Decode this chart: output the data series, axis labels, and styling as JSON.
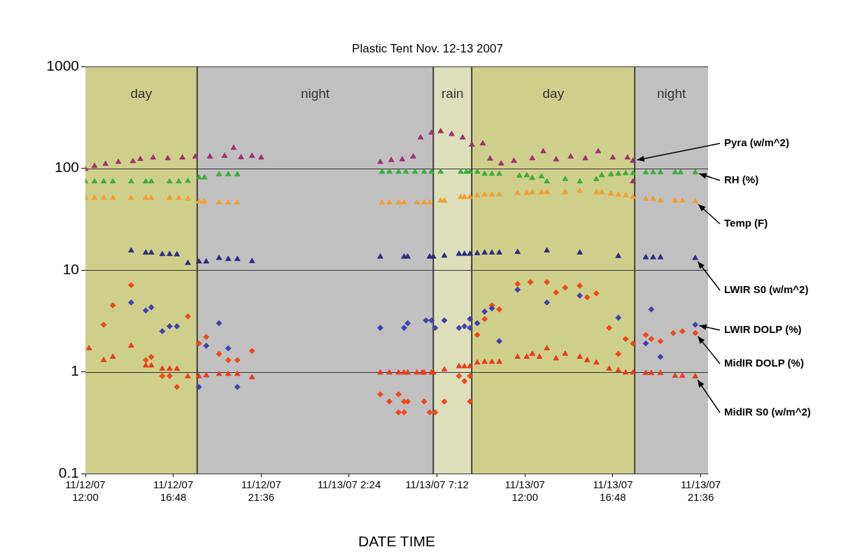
{
  "chart_data": {
    "type": "scatter",
    "title": "Plastic Tent Nov. 12-13 2007",
    "xlabel": "DATE TIME",
    "xlim": [
      "2007-11-12T12:00",
      "2007-11-13T22:00"
    ],
    "xticks": [
      {
        "value": "2007-11-12T12:00",
        "label": "11/12/07\n12:00"
      },
      {
        "value": "2007-11-12T16:48",
        "label": "11/12/07\n16:48"
      },
      {
        "value": "2007-11-12T21:36",
        "label": "11/12/07\n21:36"
      },
      {
        "value": "2007-11-13T02:24",
        "label": "11/13/07 2:24"
      },
      {
        "value": "2007-11-13T07:12",
        "label": "11/13/07 7:12"
      },
      {
        "value": "2007-11-13T12:00",
        "label": "11/13/07\n12:00"
      },
      {
        "value": "2007-11-13T16:48",
        "label": "11/13/07\n16:48"
      },
      {
        "value": "2007-11-13T21:36",
        "label": "11/13/07\n21:36"
      }
    ],
    "ylim": [
      0.1,
      1000
    ],
    "yticks": [
      0.1,
      1,
      10,
      100,
      1000
    ],
    "log": true,
    "grid": "y",
    "legend": false,
    "bands": [
      {
        "axis": "x",
        "from": "2007-11-12T12:00",
        "to": "2007-11-12T18:06",
        "label": "day",
        "color": "#cfcf8c"
      },
      {
        "axis": "x",
        "from": "2007-11-12T18:06",
        "to": "2007-11-13T07:00",
        "label": "night",
        "color": "#c0c0c0"
      },
      {
        "axis": "x",
        "from": "2007-11-13T07:00",
        "to": "2007-11-13T09:06",
        "label": "rain",
        "color": "#dcdfba"
      },
      {
        "axis": "x",
        "from": "2007-11-13T09:06",
        "to": "2007-11-13T18:00",
        "label": "day",
        "color": "#cfcf8c"
      },
      {
        "axis": "x",
        "from": "2007-11-13T18:00",
        "to": "2007-11-13T22:00",
        "label": "night",
        "color": "#c0c0c0"
      }
    ],
    "series": [
      {
        "name": "Pyra (w/m^2)",
        "color": "#a0306e",
        "marker": "triangle",
        "x": [
          "2007-11-12T12:00",
          "2007-11-12T12:30",
          "2007-11-12T13:06",
          "2007-11-12T13:48",
          "2007-11-12T14:36",
          "2007-11-12T15:00",
          "2007-11-12T15:42",
          "2007-11-12T16:30",
          "2007-11-12T17:18",
          "2007-11-12T18:00",
          "2007-11-12T18:48",
          "2007-11-12T19:36",
          "2007-11-12T20:06",
          "2007-11-12T20:30",
          "2007-11-12T21:06",
          "2007-11-12T21:36",
          "2007-11-13T04:06",
          "2007-11-13T04:42",
          "2007-11-13T05:18",
          "2007-11-13T05:54",
          "2007-11-13T06:18",
          "2007-11-13T06:54",
          "2007-11-13T07:24",
          "2007-11-13T08:00",
          "2007-11-13T08:36",
          "2007-11-13T09:06",
          "2007-11-13T09:42",
          "2007-11-13T10:06",
          "2007-11-13T10:42",
          "2007-11-13T11:24",
          "2007-11-13T12:24",
          "2007-11-13T13:00",
          "2007-11-13T13:42",
          "2007-11-13T14:30",
          "2007-11-13T15:18",
          "2007-11-13T16:00",
          "2007-11-13T16:48",
          "2007-11-13T17:36",
          "2007-11-13T17:54",
          "2007-11-13T17:54"
        ],
        "values": [
          98,
          105,
          110,
          115,
          117,
          123,
          127,
          125,
          127,
          130,
          130,
          132,
          158,
          128,
          132,
          127,
          115,
          120,
          122,
          130,
          200,
          223,
          230,
          216,
          200,
          170,
          175,
          124,
          111,
          118,
          125,
          146,
          122,
          130,
          125,
          146,
          127,
          127,
          74,
          118
        ]
      },
      {
        "name": "RH (%)",
        "color": "#3cac3c",
        "marker": "triangle",
        "x": [
          "2007-11-12T12:00",
          "2007-11-12T12:30",
          "2007-11-12T13:00",
          "2007-11-12T13:30",
          "2007-11-12T14:30",
          "2007-11-12T15:18",
          "2007-11-12T15:36",
          "2007-11-12T16:36",
          "2007-11-12T17:06",
          "2007-11-12T17:36",
          "2007-11-12T18:12",
          "2007-11-12T18:30",
          "2007-11-12T19:18",
          "2007-11-12T19:48",
          "2007-11-12T20:18",
          "2007-11-13T04:12",
          "2007-11-13T04:36",
          "2007-11-13T05:06",
          "2007-11-13T05:30",
          "2007-11-13T06:00",
          "2007-11-13T06:30",
          "2007-11-13T06:54",
          "2007-11-13T07:24",
          "2007-11-13T08:30",
          "2007-11-13T08:48",
          "2007-11-13T09:00",
          "2007-11-13T09:24",
          "2007-11-13T09:48",
          "2007-11-13T10:12",
          "2007-11-13T10:36",
          "2007-11-13T11:42",
          "2007-11-13T12:06",
          "2007-11-13T12:24",
          "2007-11-13T12:54",
          "2007-11-13T13:12",
          "2007-11-13T14:12",
          "2007-11-13T15:00",
          "2007-11-13T15:54",
          "2007-11-13T16:12",
          "2007-11-13T16:42",
          "2007-11-13T17:06",
          "2007-11-13T17:30",
          "2007-11-13T17:54",
          "2007-11-13T18:36",
          "2007-11-13T19:00",
          "2007-11-13T19:24",
          "2007-11-13T20:12",
          "2007-11-13T20:30",
          "2007-11-13T21:18"
        ],
        "values": [
          74,
          74,
          74,
          74,
          74,
          74,
          74,
          74,
          74,
          75,
          81,
          81,
          87,
          87,
          87,
          92,
          92,
          92,
          92,
          92,
          92,
          92,
          92,
          92,
          92,
          92,
          92,
          88,
          88,
          88,
          84,
          85,
          80,
          83,
          74,
          78,
          74,
          78,
          85,
          87,
          88,
          89,
          89,
          91,
          91,
          91,
          91,
          91,
          91
        ]
      },
      {
        "name": "Temp (F)",
        "color": "#f0a030",
        "marker": "triangle",
        "x": [
          "2007-11-12T12:00",
          "2007-11-12T12:30",
          "2007-11-12T13:00",
          "2007-11-12T13:30",
          "2007-11-12T14:30",
          "2007-11-12T15:18",
          "2007-11-12T15:36",
          "2007-11-12T16:36",
          "2007-11-12T17:06",
          "2007-11-12T17:36",
          "2007-11-12T18:12",
          "2007-11-12T18:30",
          "2007-11-12T19:18",
          "2007-11-12T19:48",
          "2007-11-12T20:18",
          "2007-11-13T04:12",
          "2007-11-13T04:36",
          "2007-11-13T05:06",
          "2007-11-13T05:24",
          "2007-11-13T06:06",
          "2007-11-13T06:30",
          "2007-11-13T06:48",
          "2007-11-13T07:24",
          "2007-11-13T07:36",
          "2007-11-13T08:30",
          "2007-11-13T08:42",
          "2007-11-13T09:00",
          "2007-11-13T09:24",
          "2007-11-13T09:48",
          "2007-11-13T10:12",
          "2007-11-13T10:36",
          "2007-11-13T11:36",
          "2007-11-13T12:06",
          "2007-11-13T12:24",
          "2007-11-13T12:54",
          "2007-11-13T13:12",
          "2007-11-13T14:12",
          "2007-11-13T15:00",
          "2007-11-13T15:54",
          "2007-11-13T16:12",
          "2007-11-13T16:42",
          "2007-11-13T17:06",
          "2007-11-13T17:30",
          "2007-11-13T17:54",
          "2007-11-13T18:36",
          "2007-11-13T19:00",
          "2007-11-13T19:24",
          "2007-11-13T20:12",
          "2007-11-13T20:36",
          "2007-11-13T21:18"
        ],
        "values": [
          51,
          51,
          51,
          51,
          51,
          51,
          51,
          51,
          51,
          50,
          47,
          47,
          46,
          46,
          46,
          46,
          46,
          46,
          46,
          46,
          46,
          46,
          48,
          48,
          52,
          52,
          52,
          54,
          55,
          55,
          55,
          57,
          57,
          58,
          58,
          58,
          58,
          60,
          58,
          58,
          56,
          55,
          54,
          52,
          50,
          50,
          48,
          48,
          48,
          47
        ]
      },
      {
        "name": "LWIR S0 (w/m^2)",
        "color": "#2c2c80",
        "marker": "triangle",
        "x": [
          "2007-11-12T14:30",
          "2007-11-12T15:18",
          "2007-11-12T15:36",
          "2007-11-12T16:12",
          "2007-11-12T16:36",
          "2007-11-12T17:00",
          "2007-11-12T17:36",
          "2007-11-12T18:12",
          "2007-11-12T18:36",
          "2007-11-12T19:18",
          "2007-11-12T19:48",
          "2007-11-12T20:18",
          "2007-11-12T21:06",
          "2007-11-13T04:06",
          "2007-11-13T05:24",
          "2007-11-13T05:36",
          "2007-11-13T06:48",
          "2007-11-13T07:00",
          "2007-11-13T07:36",
          "2007-11-13T08:24",
          "2007-11-13T08:42",
          "2007-11-13T09:00",
          "2007-11-13T09:24",
          "2007-11-13T09:48",
          "2007-11-13T10:12",
          "2007-11-13T10:36",
          "2007-11-13T11:36",
          "2007-11-13T13:12",
          "2007-11-13T15:00",
          "2007-11-13T17:06",
          "2007-11-13T18:36",
          "2007-11-13T19:00",
          "2007-11-13T19:24",
          "2007-11-13T21:18"
        ],
        "values": [
          15.5,
          14.8,
          14.8,
          14.3,
          14.3,
          14.2,
          11.7,
          12.1,
          12.1,
          13.1,
          12.8,
          12.8,
          12.2,
          13.5,
          13.5,
          13.5,
          13.5,
          13.5,
          13.8,
          14.4,
          14.4,
          14.4,
          14.6,
          14.8,
          14.8,
          14.8,
          15.0,
          15.5,
          14.8,
          13.7,
          13.3,
          13.3,
          13.3,
          13.1
        ]
      },
      {
        "name": "LWIR DOLP (%)",
        "color": "#4040b0",
        "marker": "diamond",
        "x": [
          "2007-11-12T14:30",
          "2007-11-12T15:18",
          "2007-11-12T15:36",
          "2007-11-12T16:12",
          "2007-11-12T16:36",
          "2007-11-12T17:00",
          "2007-11-12T18:12",
          "2007-11-12T18:36",
          "2007-11-12T19:18",
          "2007-11-12T19:48",
          "2007-11-12T20:18",
          "2007-11-13T04:06",
          "2007-11-13T05:24",
          "2007-11-13T05:36",
          "2007-11-13T06:36",
          "2007-11-13T06:54",
          "2007-11-13T07:06",
          "2007-11-13T07:36",
          "2007-11-13T08:24",
          "2007-11-13T08:42",
          "2007-11-13T09:00",
          "2007-11-13T09:00",
          "2007-11-13T09:24",
          "2007-11-13T09:48",
          "2007-11-13T10:12",
          "2007-11-13T10:36",
          "2007-11-13T11:36",
          "2007-11-13T13:12",
          "2007-11-13T15:00",
          "2007-11-13T17:06",
          "2007-11-13T18:36",
          "2007-11-13T18:54",
          "2007-11-13T19:24",
          "2007-11-13T21:18"
        ],
        "values": [
          4.8,
          4.0,
          4.3,
          2.5,
          2.8,
          2.8,
          0.71,
          1.8,
          3.0,
          1.7,
          0.71,
          2.7,
          2.7,
          3.0,
          3.2,
          3.2,
          2.7,
          3.2,
          2.7,
          2.8,
          3.3,
          2.7,
          3.0,
          3.9,
          4.2,
          2.0,
          6.4,
          4.8,
          5.6,
          3.4,
          1.9,
          4.1,
          1.4,
          2.9
        ]
      },
      {
        "name": "MidIR DOLP (%)",
        "color": "#f04818",
        "marker": "diamond",
        "x": [
          "2007-11-12T13:00",
          "2007-11-12T13:30",
          "2007-11-12T14:30",
          "2007-11-12T15:18",
          "2007-11-12T15:36",
          "2007-11-12T16:12",
          "2007-11-12T16:36",
          "2007-11-12T17:00",
          "2007-11-12T17:36",
          "2007-11-12T18:12",
          "2007-11-12T18:36",
          "2007-11-12T19:18",
          "2007-11-12T19:48",
          "2007-11-12T20:18",
          "2007-11-12T21:06",
          "2007-11-13T04:06",
          "2007-11-13T04:36",
          "2007-11-13T05:06",
          "2007-11-13T05:06",
          "2007-11-13T05:24",
          "2007-11-13T05:24",
          "2007-11-13T05:36",
          "2007-11-13T06:30",
          "2007-11-13T06:48",
          "2007-11-13T07:06",
          "2007-11-13T07:36",
          "2007-11-13T08:24",
          "2007-11-13T08:42",
          "2007-11-13T09:00",
          "2007-11-13T09:00",
          "2007-11-13T09:24",
          "2007-11-13T09:48",
          "2007-11-13T10:12",
          "2007-11-13T10:36",
          "2007-11-13T11:36",
          "2007-11-13T12:18",
          "2007-11-13T13:12",
          "2007-11-13T13:42",
          "2007-11-13T14:12",
          "2007-11-13T15:00",
          "2007-11-13T15:24",
          "2007-11-13T15:54",
          "2007-11-13T16:36",
          "2007-11-13T17:06",
          "2007-11-13T17:30",
          "2007-11-13T17:54",
          "2007-11-13T18:36",
          "2007-11-13T18:54",
          "2007-11-13T19:24",
          "2007-11-13T20:06",
          "2007-11-13T20:36",
          "2007-11-13T21:18"
        ],
        "values": [
          2.9,
          4.5,
          7.1,
          1.3,
          1.4,
          0.91,
          0.91,
          0.71,
          3.5,
          1.9,
          2.2,
          1.5,
          1.3,
          1.3,
          1.6,
          0.6,
          0.51,
          0.6,
          0.4,
          0.51,
          0.4,
          0.51,
          0.51,
          0.4,
          0.4,
          0.51,
          0.91,
          0.81,
          0.91,
          0.51,
          2.3,
          3.3,
          4.5,
          4.1,
          7.3,
          7.6,
          7.6,
          6.0,
          6.7,
          7.0,
          5.4,
          5.9,
          2.7,
          1.5,
          2.1,
          1.9,
          2.3,
          2.1,
          2.0,
          2.4,
          2.5,
          2.4
        ]
      },
      {
        "name": "MidIR S0 (w/m^2)",
        "color": "#e83a20",
        "marker": "triangle",
        "x": [
          "2007-11-12T12:12",
          "2007-11-12T13:00",
          "2007-11-12T13:30",
          "2007-11-12T14:30",
          "2007-11-12T15:18",
          "2007-11-12T15:36",
          "2007-11-12T16:12",
          "2007-11-12T16:36",
          "2007-11-12T17:00",
          "2007-11-12T17:36",
          "2007-11-12T18:12",
          "2007-11-12T18:36",
          "2007-11-12T19:18",
          "2007-11-12T19:48",
          "2007-11-12T20:18",
          "2007-11-12T21:06",
          "2007-11-13T04:06",
          "2007-11-13T04:36",
          "2007-11-13T05:06",
          "2007-11-13T05:24",
          "2007-11-13T05:36",
          "2007-11-13T06:06",
          "2007-11-13T06:24",
          "2007-11-13T06:30",
          "2007-11-13T06:54",
          "2007-11-13T07:00",
          "2007-11-13T07:36",
          "2007-11-13T08:24",
          "2007-11-13T08:42",
          "2007-11-13T09:00",
          "2007-11-13T09:24",
          "2007-11-13T09:48",
          "2007-11-13T10:12",
          "2007-11-13T10:36",
          "2007-11-13T11:36",
          "2007-11-13T12:06",
          "2007-11-13T12:24",
          "2007-11-13T12:48",
          "2007-11-13T13:12",
          "2007-11-13T13:42",
          "2007-11-13T14:12",
          "2007-11-13T15:00",
          "2007-11-13T15:24",
          "2007-11-13T15:54",
          "2007-11-13T16:36",
          "2007-11-13T17:06",
          "2007-11-13T17:30",
          "2007-11-13T17:54",
          "2007-11-13T18:36",
          "2007-11-13T18:54",
          "2007-11-13T19:24",
          "2007-11-13T20:12",
          "2007-11-13T20:36",
          "2007-11-13T21:18"
        ],
        "values": [
          1.7,
          1.3,
          1.4,
          1.8,
          1.15,
          1.15,
          1.07,
          1.07,
          1.07,
          0.9,
          0.9,
          0.92,
          0.95,
          0.95,
          0.95,
          0.88,
          0.98,
          0.98,
          0.98,
          0.98,
          0.98,
          0.98,
          0.98,
          0.98,
          0.98,
          0.98,
          1.05,
          1.13,
          1.13,
          1.13,
          1.23,
          1.25,
          1.25,
          1.25,
          1.4,
          1.4,
          1.5,
          1.4,
          1.7,
          1.35,
          1.5,
          1.4,
          1.3,
          1.23,
          1.07,
          1.03,
          0.98,
          0.98,
          0.97,
          0.97,
          0.97,
          0.91,
          0.91,
          0.9
        ]
      }
    ]
  }
}
